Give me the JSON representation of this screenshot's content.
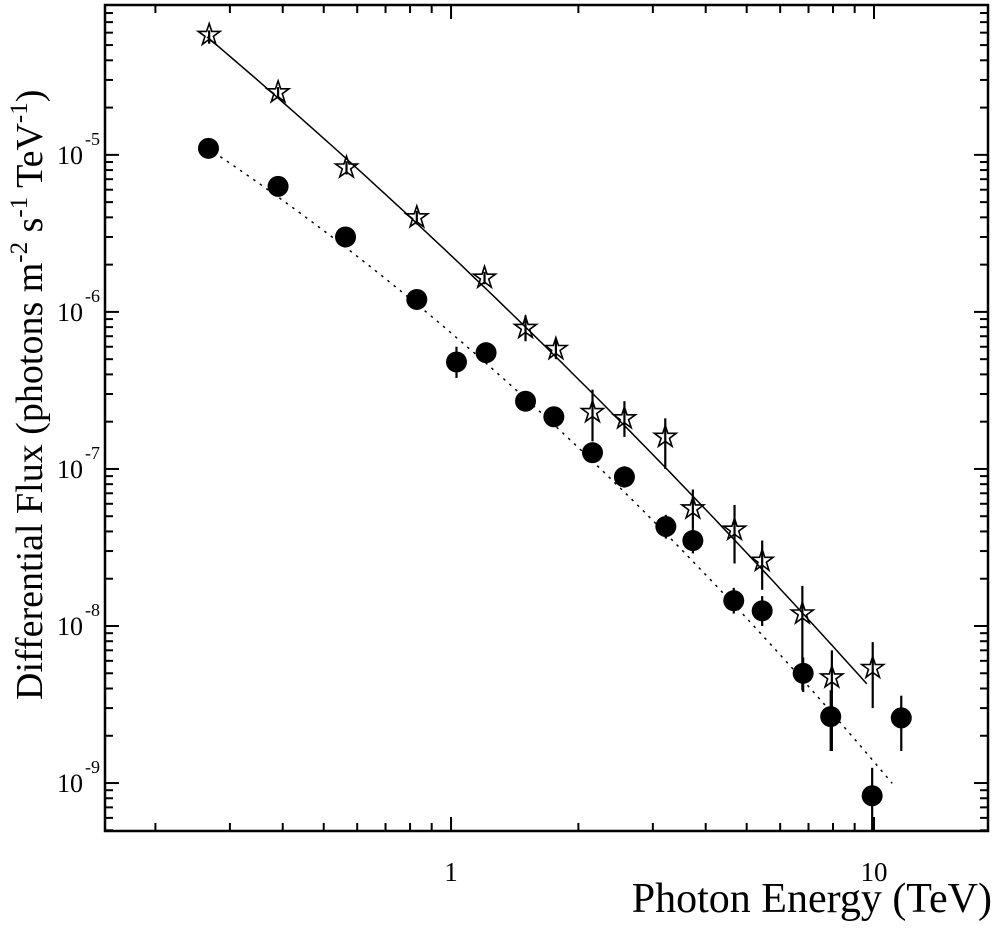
{
  "figure": {
    "background": "#ffffff",
    "ink": "#000000"
  },
  "axes": {
    "x": {
      "scale": "log",
      "label": "Photon Energy (TeV)",
      "major_tick_labels": [
        {
          "value": 1,
          "text": "1"
        },
        {
          "value": 10,
          "text": "10"
        }
      ]
    },
    "y": {
      "scale": "log",
      "mantissa_text": "10",
      "major_tick_exponents": [
        "-5",
        "-6",
        "-7",
        "-8",
        "-9"
      ],
      "label_parts": {
        "prefix": "Differential  Flux (photons m",
        "sup1": "-2",
        "mid1": " s",
        "sup2": "-1",
        "mid2": " TeV",
        "sup3": "-1",
        "suffix": ")"
      }
    }
  },
  "chart_data": {
    "type": "scatter",
    "title": "",
    "xlabel": "Photon Energy (TeV)",
    "ylabel": "Differential Flux (photons m^-2 s^-1 TeV^-1)",
    "x_scale": "log",
    "y_scale": "log",
    "xlim": [
      0.152,
      18.6
    ],
    "ylim": [
      4.95e-10,
      9e-05
    ],
    "grid": false,
    "legend": "none",
    "series": [
      {
        "name": "upper spectrum (open stars, solid power-law fit)",
        "marker": "open-star",
        "line": "solid",
        "fit": {
          "type": "log10-quadratic",
          "a": -5.641,
          "b": -2.547,
          "c": -0.232,
          "logE_range": [
            -0.577,
            0.991
          ]
        },
        "points": [
          {
            "E": 0.268,
            "F": 5.8e-05,
            "Flo": 5.1e-05,
            "Fhi": 6.2e-05
          },
          {
            "E": 0.39,
            "F": 2.5e-05,
            "Flo": 2.3e-05,
            "Fhi": 2.7e-05
          },
          {
            "E": 0.566,
            "F": 8.3e-06,
            "Flo": 7.5e-06,
            "Fhi": 9.1e-06
          },
          {
            "E": 0.83,
            "F": 4e-06,
            "Flo": 3.6e-06,
            "Fhi": 4.4e-06
          },
          {
            "E": 1.2,
            "F": 1.65e-06,
            "Flo": 1.5e-06,
            "Fhi": 1.8e-06
          },
          {
            "E": 1.5,
            "F": 7.9e-07,
            "Flo": 6.5e-07,
            "Fhi": 9.5e-07
          },
          {
            "E": 1.77,
            "F": 5.8e-07,
            "Flo": 5e-07,
            "Fhi": 6.7e-07
          },
          {
            "E": 2.16,
            "F": 2.3e-07,
            "Flo": 1.5e-07,
            "Fhi": 3.2e-07
          },
          {
            "E": 2.57,
            "F": 2.1e-07,
            "Flo": 1.6e-07,
            "Fhi": 2.7e-07
          },
          {
            "E": 3.21,
            "F": 1.6e-07,
            "Flo": 1e-07,
            "Fhi": 2.1e-07
          },
          {
            "E": 3.73,
            "F": 5.6e-08,
            "Flo": 4.2e-08,
            "Fhi": 7.4e-08
          },
          {
            "E": 4.68,
            "F": 4.1e-08,
            "Flo": 2.5e-08,
            "Fhi": 5.9e-08
          },
          {
            "E": 5.44,
            "F": 2.6e-08,
            "Flo": 1.7e-08,
            "Fhi": 3.5e-08
          },
          {
            "E": 6.77,
            "F": 1.2e-08,
            "Flo": 3.9e-09,
            "Fhi": 1.8e-08
          },
          {
            "E": 7.95,
            "F": 4.7e-09,
            "Flo": 1.6e-09,
            "Fhi": 7e-09
          },
          {
            "E": 9.93,
            "F": 5.4e-09,
            "Flo": 3e-09,
            "Fhi": 7.9e-09
          }
        ]
      },
      {
        "name": "lower spectrum (filled circles, dotted power-law fit)",
        "marker": "filled-circle",
        "line": "dotted",
        "fit": {
          "type": "log10-quadratic",
          "a": -6.134,
          "b": -2.295,
          "c": -0.4357,
          "logE_range": [
            -0.577,
            1.054
          ]
        },
        "points": [
          {
            "E": 0.267,
            "F": 1.1e-05,
            "Flo": 9.5e-06,
            "Fhi": 1.27e-05
          },
          {
            "E": 0.39,
            "F": 6.3e-06,
            "Flo": 5.8e-06,
            "Fhi": 6.9e-06
          },
          {
            "E": 0.563,
            "F": 3e-06,
            "Flo": 2.7e-06,
            "Fhi": 3.3e-06
          },
          {
            "E": 0.83,
            "F": 1.2e-06,
            "Flo": 1.1e-06,
            "Fhi": 1.3e-06
          },
          {
            "E": 1.03,
            "F": 4.8e-07,
            "Flo": 3.8e-07,
            "Fhi": 6e-07
          },
          {
            "E": 1.21,
            "F": 5.5e-07,
            "Flo": 5e-07,
            "Fhi": 6.1e-07
          },
          {
            "E": 1.5,
            "F": 2.7e-07,
            "Flo": 2.4e-07,
            "Fhi": 3e-07
          },
          {
            "E": 1.75,
            "F": 2.15e-07,
            "Flo": 1.9e-07,
            "Fhi": 2.4e-07
          },
          {
            "E": 2.16,
            "F": 1.27e-07,
            "Flo": 1.1e-07,
            "Fhi": 1.45e-07
          },
          {
            "E": 2.57,
            "F": 8.9e-08,
            "Flo": 7.6e-08,
            "Fhi": 1.04e-07
          },
          {
            "E": 3.22,
            "F": 4.3e-08,
            "Flo": 3.6e-08,
            "Fhi": 5.1e-08
          },
          {
            "E": 3.73,
            "F": 3.5e-08,
            "Flo": 2.9e-08,
            "Fhi": 4.2e-08
          },
          {
            "E": 4.66,
            "F": 1.45e-08,
            "Flo": 1.2e-08,
            "Fhi": 1.75e-08
          },
          {
            "E": 5.44,
            "F": 1.25e-08,
            "Flo": 1e-08,
            "Fhi": 1.55e-08
          },
          {
            "E": 6.8,
            "F": 5e-09,
            "Flo": 3.8e-09,
            "Fhi": 6.3e-09
          },
          {
            "E": 7.9,
            "F": 2.65e-09,
            "Flo": 1.6e-09,
            "Fhi": 3.9e-09
          },
          {
            "E": 9.9,
            "F": 8.3e-10,
            "Flo": 5e-10,
            "Fhi": 1.25e-09
          },
          {
            "E": 11.6,
            "F": 2.6e-09,
            "Flo": 1.6e-09,
            "Fhi": 3.6e-09
          }
        ]
      }
    ]
  }
}
